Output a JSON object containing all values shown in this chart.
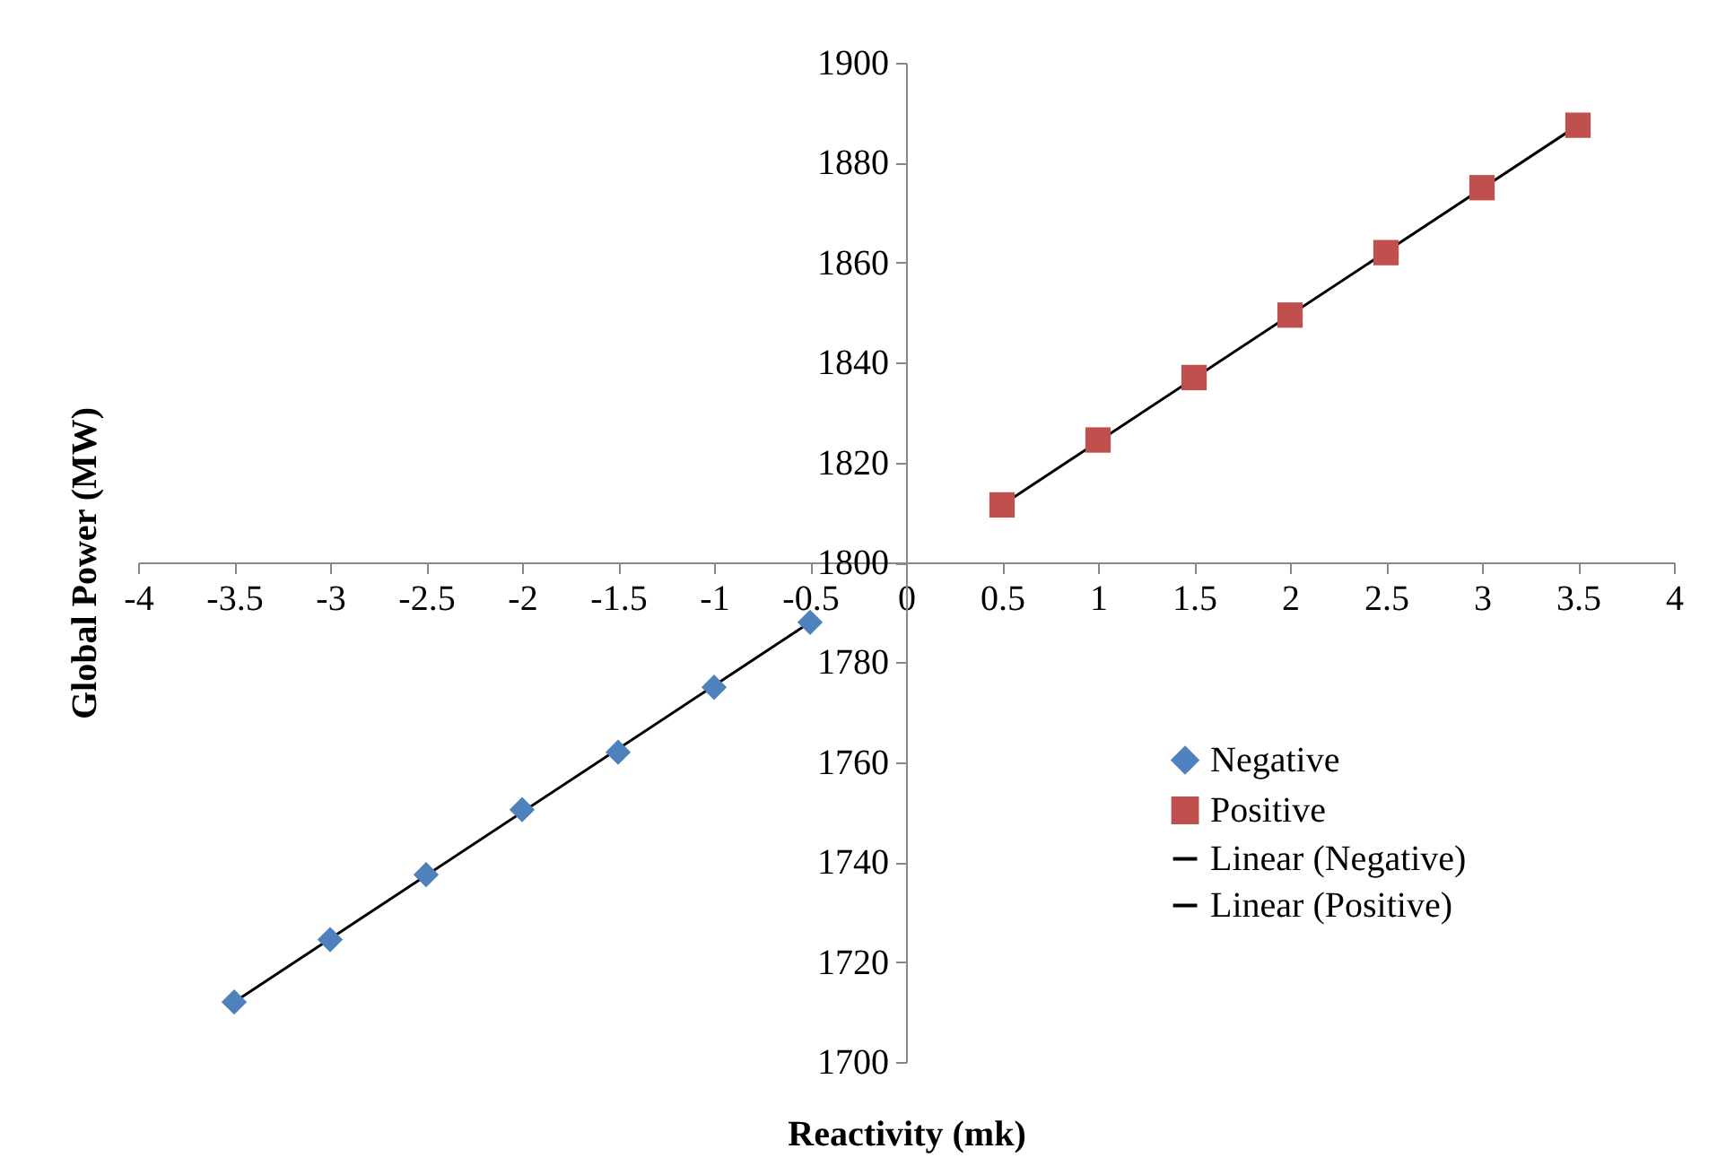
{
  "chart_data": {
    "type": "scatter",
    "xlabel": "Reactivity (mk)",
    "ylabel": "Global Power (MW)",
    "xlim": [
      -4,
      4
    ],
    "ylim": [
      1700,
      1900
    ],
    "xticks": [
      -4,
      -3.5,
      -3,
      -2.5,
      -2,
      -1.5,
      -1,
      -0.5,
      0,
      0.5,
      1,
      1.5,
      2,
      2.5,
      3,
      3.5,
      4
    ],
    "yticks": [
      1700,
      1720,
      1740,
      1760,
      1780,
      1800,
      1820,
      1840,
      1860,
      1880,
      1900
    ],
    "grid": false,
    "legend": "right",
    "series": [
      {
        "name": "Negative",
        "type": "scatter",
        "marker": "diamond",
        "color": "#4f81bd",
        "x": [
          -3.5,
          -3,
          -2.5,
          -2,
          -1.5,
          -1,
          -0.5
        ],
        "values": [
          1712,
          1724.5,
          1737.5,
          1750.5,
          1762,
          1775,
          1788
        ]
      },
      {
        "name": "Positive",
        "type": "scatter",
        "marker": "square",
        "color": "#c0504d",
        "x": [
          0.5,
          1,
          1.5,
          2,
          2.5,
          3,
          3.5
        ],
        "values": [
          1811.5,
          1824.5,
          1837,
          1849.5,
          1862,
          1875,
          1887.5
        ]
      },
      {
        "name": "Linear (Negative)",
        "type": "line",
        "line_style": "solid",
        "color": "#000000",
        "x": [
          -3.5,
          -0.5
        ],
        "values": [
          1712,
          1788
        ]
      },
      {
        "name": "Linear (Positive)",
        "type": "line",
        "line_style": "solid",
        "color": "#000000",
        "x": [
          0.5,
          3.5
        ],
        "values": [
          1811.5,
          1887.5
        ]
      }
    ]
  }
}
